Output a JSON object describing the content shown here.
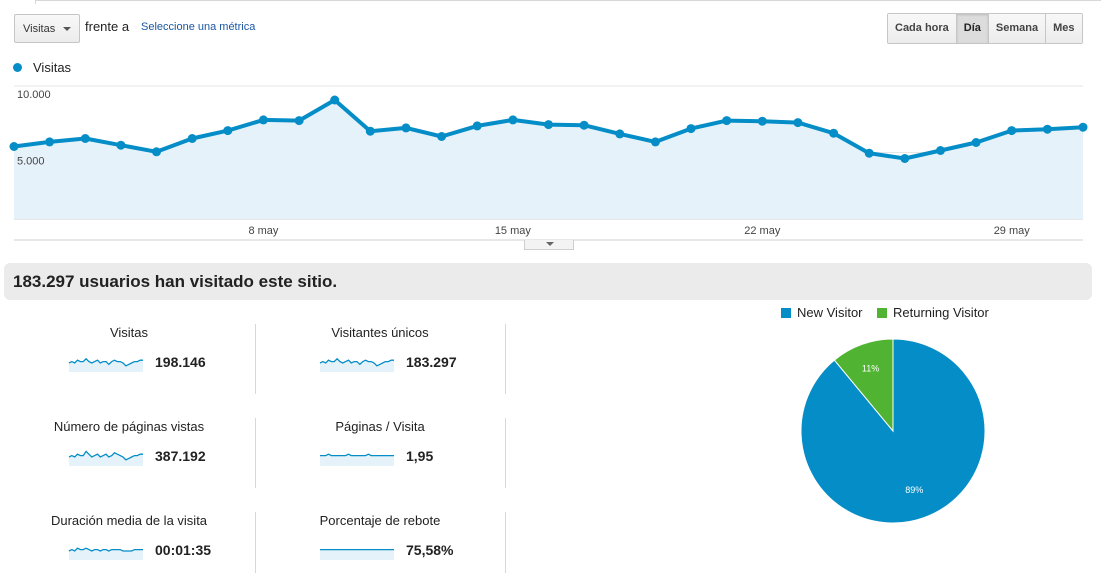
{
  "toolbar": {
    "metric_select": "Visitas",
    "vs_label": "frente a",
    "select_metric_link": "Seleccione una métrica",
    "granularity": [
      {
        "label": "Cada hora",
        "active": false
      },
      {
        "label": "Día",
        "active": true
      },
      {
        "label": "Semana",
        "active": false
      },
      {
        "label": "Mes",
        "active": false
      }
    ]
  },
  "legend": {
    "series_label": "Visitas",
    "color": "#058dc7"
  },
  "colors": {
    "accent": "#058dc7",
    "area_fill": "#e6f2f9",
    "green": "#50b432",
    "banner_bg": "#ebebeb"
  },
  "chart_data": {
    "type": "area",
    "series": [
      {
        "name": "Visitas",
        "values": [
          5450,
          5800,
          6050,
          5550,
          5050,
          6050,
          6650,
          7450,
          7400,
          8950,
          6600,
          6850,
          6200,
          7000,
          7450,
          7100,
          7050,
          6400,
          5800,
          6800,
          7400,
          7350,
          7250,
          6450,
          4950,
          4550,
          5150,
          5750,
          6650,
          6750,
          6900
        ]
      }
    ],
    "x_tick_labels": [
      {
        "index": 7,
        "label": "8 may"
      },
      {
        "index": 14,
        "label": "15 may"
      },
      {
        "index": 21,
        "label": "22 may"
      },
      {
        "index": 28,
        "label": "29 may"
      }
    ],
    "y_tick_labels": [
      {
        "value": 10000,
        "label": "10.000"
      },
      {
        "value": 5000,
        "label": "5.000"
      }
    ],
    "ylim": [
      0,
      10000
    ],
    "grid": true
  },
  "drawer_handle": "chevron-down-icon",
  "summary": {
    "banner": "183.297 usuarios han visitado este sitio."
  },
  "scorecards": [
    {
      "title": "Visitas",
      "value": "198.146",
      "spark": [
        5,
        6,
        5,
        7,
        6,
        6,
        8,
        6,
        5,
        6,
        7,
        5,
        6,
        6,
        4,
        6,
        7,
        6,
        6,
        5,
        3,
        4,
        5,
        6,
        6,
        7,
        7
      ]
    },
    {
      "title": "Visitantes únicos",
      "value": "183.297",
      "spark": [
        5,
        6,
        5,
        7,
        6,
        6,
        8,
        6,
        5,
        6,
        7,
        5,
        6,
        6,
        4,
        6,
        7,
        6,
        6,
        5,
        3,
        4,
        5,
        6,
        6,
        7,
        7
      ]
    },
    {
      "title": "Número de páginas vistas",
      "value": "387.192",
      "spark": [
        5,
        6,
        5,
        7,
        6,
        6,
        9,
        7,
        5,
        6,
        7,
        5,
        6,
        7,
        5,
        6,
        8,
        7,
        6,
        5,
        3,
        4,
        5,
        6,
        6,
        7,
        7
      ]
    },
    {
      "title": "Páginas / Visita",
      "value": "1,95",
      "spark": [
        6,
        6,
        6,
        7,
        6,
        6,
        6,
        6,
        6,
        6,
        7,
        6,
        6,
        6,
        6,
        6,
        6,
        7,
        6,
        6,
        6,
        6,
        6,
        6,
        6,
        6,
        6
      ]
    },
    {
      "title": "Duración media de la visita",
      "value": "00:01:35",
      "spark": [
        5,
        6,
        5,
        7,
        6,
        6,
        7,
        6,
        5,
        6,
        6,
        5,
        6,
        6,
        5,
        6,
        6,
        6,
        6,
        5,
        5,
        5,
        5,
        6,
        6,
        6,
        6
      ]
    },
    {
      "title": "Porcentaje de rebote",
      "value": "75,58%",
      "spark": [
        6,
        6,
        6,
        6,
        6,
        6,
        6,
        6,
        6,
        6,
        6,
        6,
        6,
        6,
        6,
        6,
        6,
        6,
        6,
        6,
        6,
        6,
        6,
        6,
        6,
        6,
        6
      ]
    }
  ],
  "pie_chart": {
    "type": "pie",
    "legend": [
      {
        "label": "New Visitor",
        "color": "#058dc7"
      },
      {
        "label": "Returning Visitor",
        "color": "#50b432"
      }
    ],
    "slices": [
      {
        "label": "New Visitor",
        "value": 89,
        "text": "89%",
        "color": "#058dc7"
      },
      {
        "label": "Returning Visitor",
        "value": 11,
        "text": "11%",
        "color": "#50b432"
      }
    ]
  }
}
